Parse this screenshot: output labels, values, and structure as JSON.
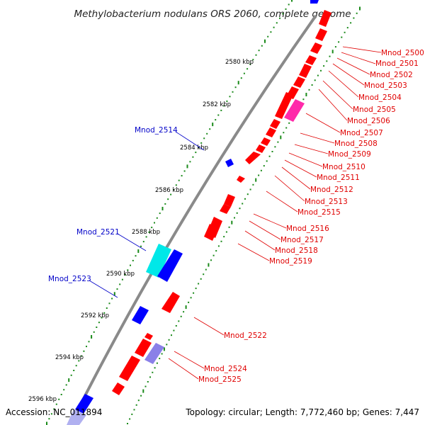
{
  "title": "Methylobacterium nodulans ORS 2060, complete genome",
  "accession": "Accession: NC_011894",
  "summary": "Topology: circular; Length: 7,772,460 bp; Genes: 7,447",
  "colors": {
    "forward": "#ff0000",
    "reverse": "#0000ff",
    "cyan": "#00f0f0",
    "magenta": "#ff2aaa",
    "violet": "#8a80e8",
    "backbone": "#8a8a8a",
    "ticks": "#1a8a1a",
    "label_red": "#e00000",
    "label_blue": "#0000c8"
  },
  "ticks": [
    "2580 kbp",
    "2582 kbp",
    "2584 kbp",
    "2586 kbp",
    "2588 kbp",
    "2590 kbp",
    "2592 kbp",
    "2594 kbp",
    "2596 kbp"
  ],
  "genes": [
    {
      "name": "Mnod_2500",
      "strand": "forward",
      "type": "cds"
    },
    {
      "name": "Mnod_2501",
      "strand": "forward",
      "type": "cds"
    },
    {
      "name": "Mnod_2502",
      "strand": "forward",
      "type": "cds"
    },
    {
      "name": "Mnod_2503",
      "strand": "forward",
      "type": "cds"
    },
    {
      "name": "Mnod_2504",
      "strand": "forward",
      "type": "cds"
    },
    {
      "name": "Mnod_2505",
      "strand": "forward",
      "type": "cds"
    },
    {
      "name": "Mnod_2506",
      "strand": "forward",
      "type": "cds"
    },
    {
      "name": "Mnod_2507",
      "strand": "forward",
      "type": "rna-magenta"
    },
    {
      "name": "Mnod_2508",
      "strand": "forward",
      "type": "cds"
    },
    {
      "name": "Mnod_2509",
      "strand": "forward",
      "type": "cds"
    },
    {
      "name": "Mnod_2510",
      "strand": "forward",
      "type": "cds"
    },
    {
      "name": "Mnod_2511",
      "strand": "forward",
      "type": "cds"
    },
    {
      "name": "Mnod_2512",
      "strand": "forward",
      "type": "cds"
    },
    {
      "name": "Mnod_2513",
      "strand": "forward",
      "type": "cds"
    },
    {
      "name": "Mnod_2514",
      "strand": "reverse",
      "type": "cds"
    },
    {
      "name": "Mnod_2515",
      "strand": "forward",
      "type": "cds"
    },
    {
      "name": "Mnod_2516",
      "strand": "forward",
      "type": "cds"
    },
    {
      "name": "Mnod_2517",
      "strand": "forward",
      "type": "cds"
    },
    {
      "name": "Mnod_2518",
      "strand": "forward",
      "type": "cds"
    },
    {
      "name": "Mnod_2519",
      "strand": "forward",
      "type": "cds"
    },
    {
      "name": "Mnod_2521",
      "strand": "reverse",
      "type": "rna-cyan"
    },
    {
      "name": "Mnod_2522",
      "strand": "forward",
      "type": "cds"
    },
    {
      "name": "Mnod_2523",
      "strand": "reverse",
      "type": "cds"
    },
    {
      "name": "Mnod_2524",
      "strand": "forward",
      "type": "rna-violet"
    },
    {
      "name": "Mnod_2525",
      "strand": "forward",
      "type": "cds"
    }
  ]
}
